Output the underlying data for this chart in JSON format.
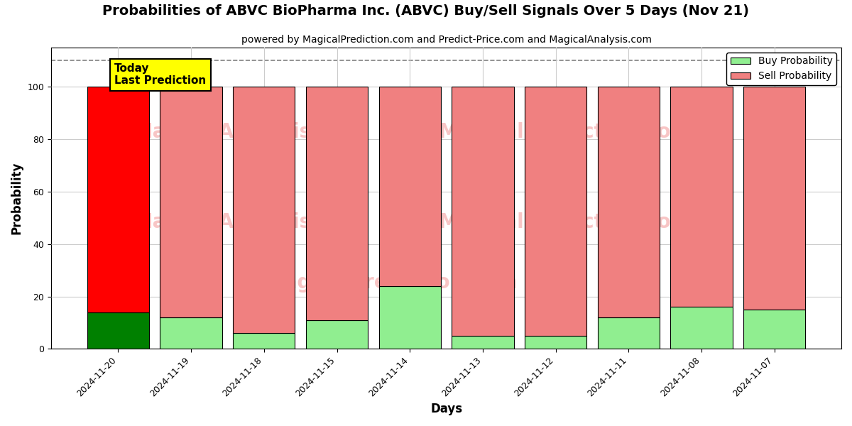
{
  "title": "Probabilities of ABVC BioPharma Inc. (ABVC) Buy/Sell Signals Over 5 Days (Nov 21)",
  "subtitle": "powered by MagicalPrediction.com and Predict-Price.com and MagicalAnalysis.com",
  "xlabel": "Days",
  "ylabel": "Probability",
  "dates": [
    "2024-11-20",
    "2024-11-19",
    "2024-11-18",
    "2024-11-15",
    "2024-11-14",
    "2024-11-13",
    "2024-11-12",
    "2024-11-11",
    "2024-11-08",
    "2024-11-07"
  ],
  "buy_values": [
    14,
    12,
    6,
    11,
    24,
    5,
    5,
    12,
    16,
    15
  ],
  "sell_values": [
    86,
    88,
    94,
    89,
    76,
    95,
    95,
    88,
    84,
    85
  ],
  "today_buy_color": "#008000",
  "today_sell_color": "#ff0000",
  "other_buy_color": "#90ee90",
  "other_sell_color": "#f08080",
  "today_label": "Today\nLast Prediction",
  "today_label_bg": "#ffff00",
  "legend_buy_label": "Buy Probability",
  "legend_sell_label": "Sell Probability",
  "dashed_line_y": 110,
  "ylim": [
    0,
    115
  ],
  "watermark_color": "#f08080",
  "watermark_alpha": 0.45,
  "bar_width": 0.85,
  "figsize": [
    12,
    6
  ],
  "dpi": 100,
  "title_fontsize": 14,
  "subtitle_fontsize": 10,
  "axis_label_fontsize": 12,
  "tick_fontsize": 9,
  "legend_fontsize": 10,
  "grid_color": "#cccccc",
  "bg_color": "#ffffff",
  "edge_color": "#000000"
}
